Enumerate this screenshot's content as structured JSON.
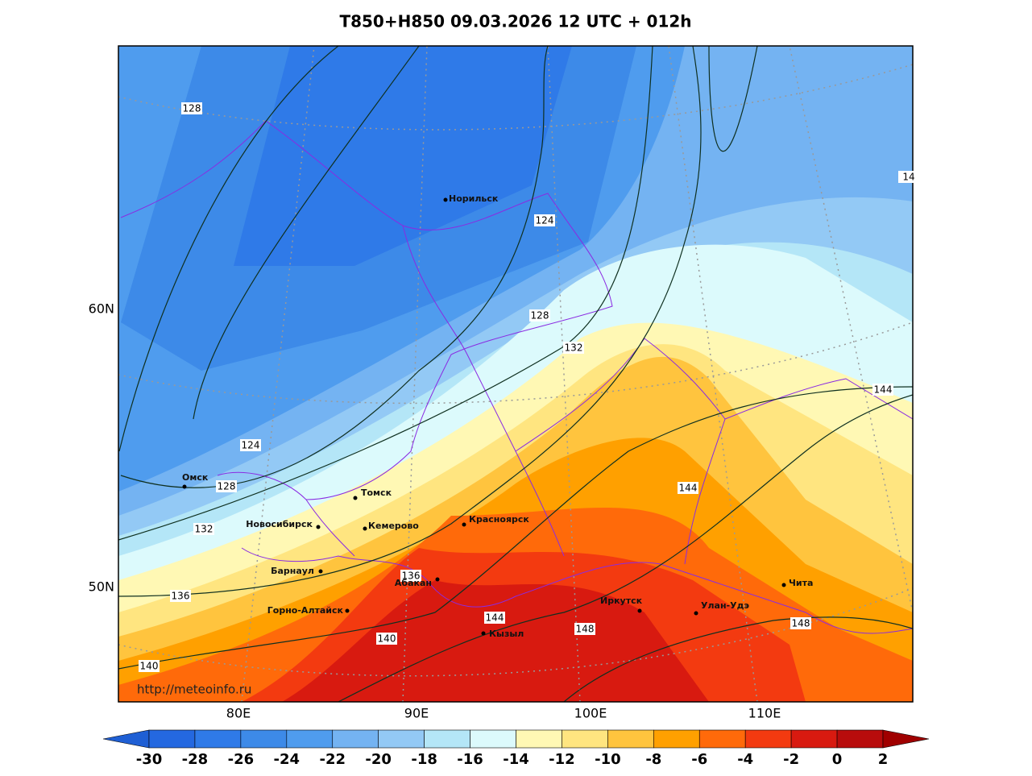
{
  "title": "T850+H850 09.03.2026 12 UTC + 012h",
  "url": "http://meteoinfo.ru",
  "lat_labels": [
    "60N",
    "50N"
  ],
  "lon_labels": [
    "80E",
    "90E",
    "100E",
    "110E"
  ],
  "cities": [
    "Норильск",
    "Омск",
    "Томск",
    "Новосибирск",
    "Кемерово",
    "Красноярск",
    "Барнаул",
    "Абакан",
    "Горно-Алтайск",
    "Кызыл",
    "Иркутск",
    "Улан-Удэ",
    "Чита"
  ],
  "contour_labels": [
    128,
    124,
    128,
    132,
    124,
    128,
    132,
    136,
    136,
    140,
    140,
    144,
    144,
    144,
    148,
    148,
    14
  ],
  "colorbar": {
    "ticks": [
      -30,
      -28,
      -26,
      -24,
      -22,
      -20,
      -18,
      -16,
      -14,
      -12,
      -10,
      -8,
      -6,
      -4,
      -2,
      0,
      2
    ],
    "colors": [
      "#1f5fd4",
      "#2468e0",
      "#2f7ae8",
      "#3d8ae8",
      "#4f9cee",
      "#74b3f2",
      "#93c9f5",
      "#b4e6f7",
      "#dcfafc",
      "#fff8b4",
      "#ffe580",
      "#ffc43e",
      "#ffa000",
      "#ff6a0a",
      "#f33a10",
      "#d81a10",
      "#b80c0c",
      "#a00000"
    ]
  }
}
